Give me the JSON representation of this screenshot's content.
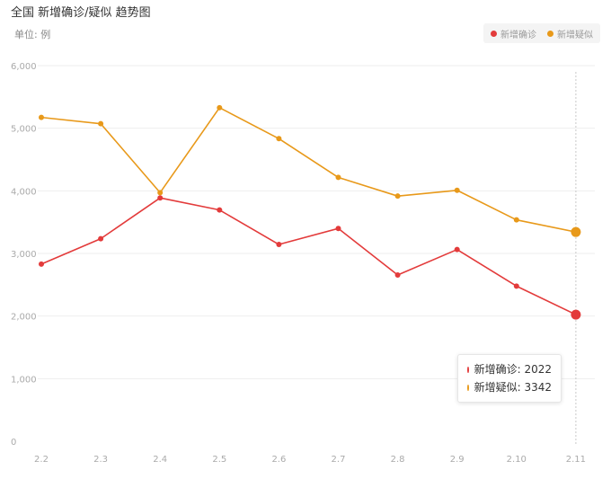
{
  "title": "全国 新增确诊/疑似 趋势图",
  "unit_label": "单位: 例",
  "colors": {
    "confirmed": "#e33b3b",
    "suspected": "#e8991a",
    "grid": "#eeeeee",
    "axis_text": "#aaaaaa"
  },
  "tooltip": {
    "confirmed_label": "新增确诊: 2022",
    "suspected_label": "新增疑似: 3342"
  },
  "chart_data": {
    "type": "line",
    "categories": [
      "2.2",
      "2.3",
      "2.4",
      "2.5",
      "2.6",
      "2.7",
      "2.8",
      "2.9",
      "2.10",
      "2.11"
    ],
    "series": [
      {
        "name": "新增确诊",
        "values": [
          2829,
          3235,
          3887,
          3694,
          3143,
          3399,
          2656,
          3062,
          2478,
          2022
        ]
      },
      {
        "name": "新增疑似",
        "values": [
          5173,
          5072,
          3971,
          5328,
          4833,
          4214,
          3916,
          4008,
          3536,
          3342
        ]
      }
    ],
    "yticks": [
      "0",
      "1,000",
      "2,000",
      "3,000",
      "4,000",
      "5,000",
      "6,000"
    ],
    "ylim": [
      0,
      6000
    ],
    "grid": true,
    "legend_position": "top-right",
    "highlighted_category": "2.11"
  }
}
